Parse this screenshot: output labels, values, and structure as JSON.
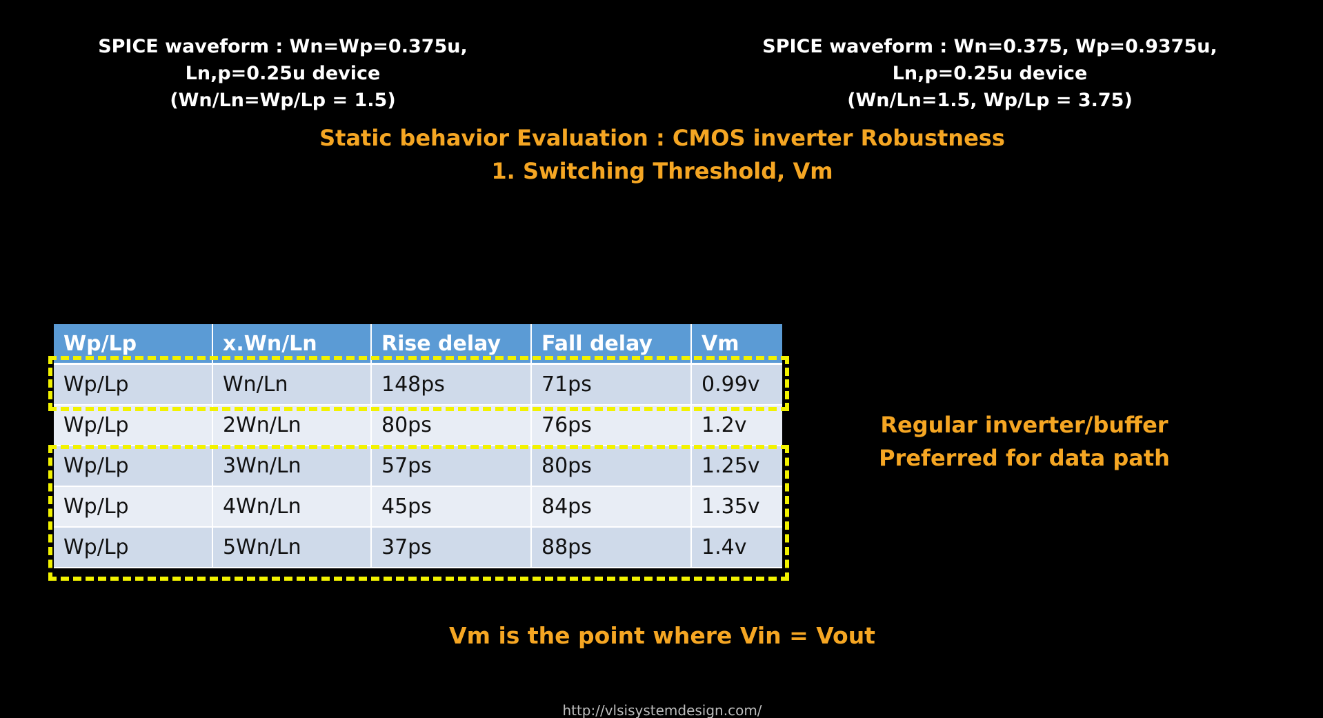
{
  "captions": {
    "left": [
      "SPICE waveform : Wn=Wp=0.375u,",
      "Ln,p=0.25u device",
      "(Wn/Ln=Wp/Lp = 1.5)"
    ],
    "right": [
      "SPICE waveform : Wn=0.375, Wp=0.9375u,",
      "Ln,p=0.25u device",
      "(Wn/Ln=1.5, Wp/Lp = 3.75)"
    ]
  },
  "title": [
    "Static behavior Evaluation : CMOS inverter Robustness",
    "1. Switching Threshold, Vm"
  ],
  "table": {
    "headers": [
      "Wp/Lp",
      "x.Wn/Ln",
      "Rise delay",
      "Fall delay",
      "Vm"
    ],
    "rows": [
      [
        "Wp/Lp",
        "Wn/Ln",
        "148ps",
        "71ps",
        "0.99v"
      ],
      [
        "Wp/Lp",
        "2Wn/Ln",
        "80ps",
        "76ps",
        "1.2v"
      ],
      [
        "Wp/Lp",
        "3Wn/Ln",
        "57ps",
        "80ps",
        "1.25v"
      ],
      [
        "Wp/Lp",
        "4Wn/Ln",
        "45ps",
        "84ps",
        "1.35v"
      ],
      [
        "Wp/Lp",
        "5Wn/Ln",
        "37ps",
        "88ps",
        "1.4v"
      ]
    ]
  },
  "note": [
    "Regular inverter/buffer",
    "Preferred for data path"
  ],
  "footnote": "Vm is the point where Vin = Vout",
  "url": "http://vlsisystemdesign.com/",
  "colors": {
    "background": "#000000",
    "accent_orange": "#f5a623",
    "highlight_yellow": "#f2f200",
    "table_header": "#5b9bd5"
  }
}
